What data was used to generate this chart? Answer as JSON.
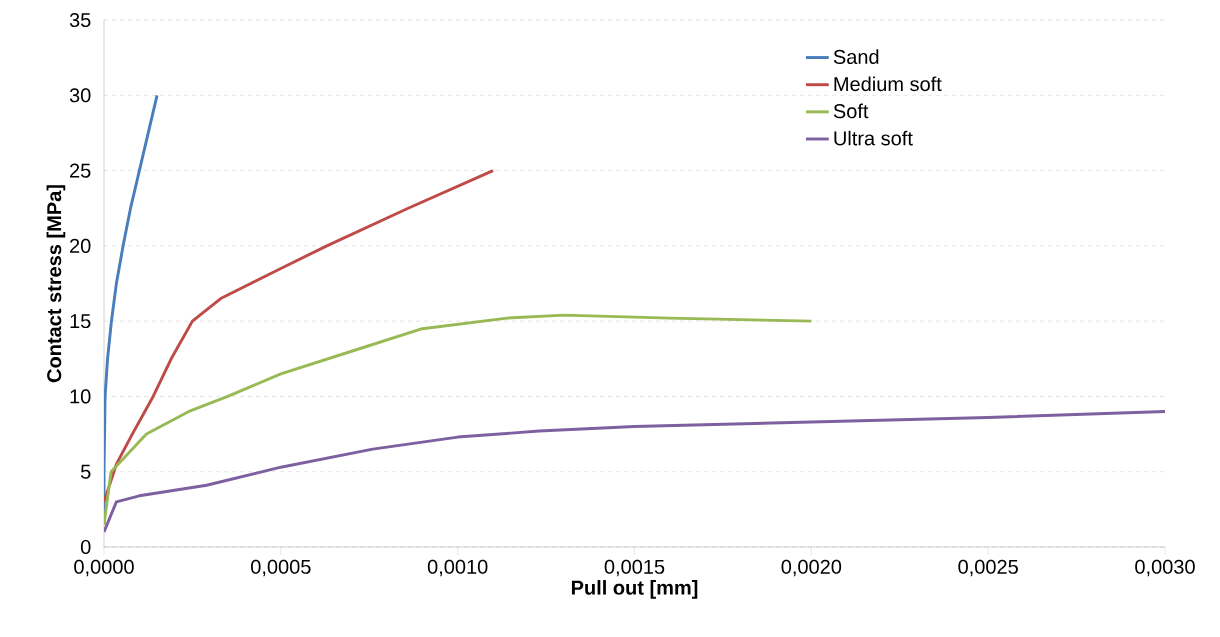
{
  "chart_data": {
    "type": "line",
    "xlabel": "Pull out [mm]",
    "ylabel": "Contact stress [MPa]",
    "xlim": [
      0,
      0.003
    ],
    "ylim": [
      0,
      35
    ],
    "xticks": [
      {
        "value": 0,
        "label": "0,0000"
      },
      {
        "value": 0.0005,
        "label": "0,0005"
      },
      {
        "value": 0.001,
        "label": "0,0010"
      },
      {
        "value": 0.0015,
        "label": "0,0015"
      },
      {
        "value": 0.002,
        "label": "0,0020"
      },
      {
        "value": 0.0025,
        "label": "0,0025"
      },
      {
        "value": 0.003,
        "label": "0,0030"
      }
    ],
    "yticks": [
      0,
      5,
      10,
      15,
      20,
      25,
      30,
      35
    ],
    "grid": "y",
    "legend": "top right",
    "marker": "none",
    "line_style": "solid",
    "series": [
      {
        "name": "Sand",
        "color": "#4a7ebb",
        "x": [
          0,
          0,
          3e-06,
          1e-05,
          2.1e-05,
          3.5e-05,
          5.4e-05,
          7.5e-05,
          0.0001,
          0.00015
        ],
        "values": [
          1.5,
          5,
          10,
          12.5,
          15,
          17.5,
          20,
          22.5,
          25,
          30
        ]
      },
      {
        "name": "Medium soft",
        "color": "#be4b48",
        "x": [
          0,
          3.5e-05,
          8e-05,
          0.000139,
          0.00019,
          0.00025,
          0.00033,
          0.0005,
          0.00063,
          0.00086,
          0.0011
        ],
        "values": [
          3,
          5.5,
          7.5,
          10,
          12.5,
          15,
          16.5,
          18.5,
          20,
          22.5,
          25
        ]
      },
      {
        "name": "Soft",
        "color": "#98b954",
        "x": [
          0,
          2e-05,
          0.00012,
          0.00024,
          0.00035,
          0.0005,
          0.0007,
          0.0009,
          0.00114,
          0.0013,
          0.0016,
          0.002
        ],
        "values": [
          1.5,
          5,
          7.5,
          9,
          10,
          11.5,
          13,
          14.5,
          15.2,
          15.4,
          15.2,
          15
        ]
      },
      {
        "name": "Ultra soft",
        "color": "#7d60a0",
        "x": [
          0,
          3.5e-05,
          0.0001,
          0.00029,
          0.0005,
          0.00076,
          0.001,
          0.00123,
          0.0015,
          0.002,
          0.0025,
          0.003
        ],
        "values": [
          1,
          3,
          3.4,
          4.1,
          5.3,
          6.5,
          7.3,
          7.7,
          8,
          8.3,
          8.6,
          9
        ]
      }
    ]
  }
}
